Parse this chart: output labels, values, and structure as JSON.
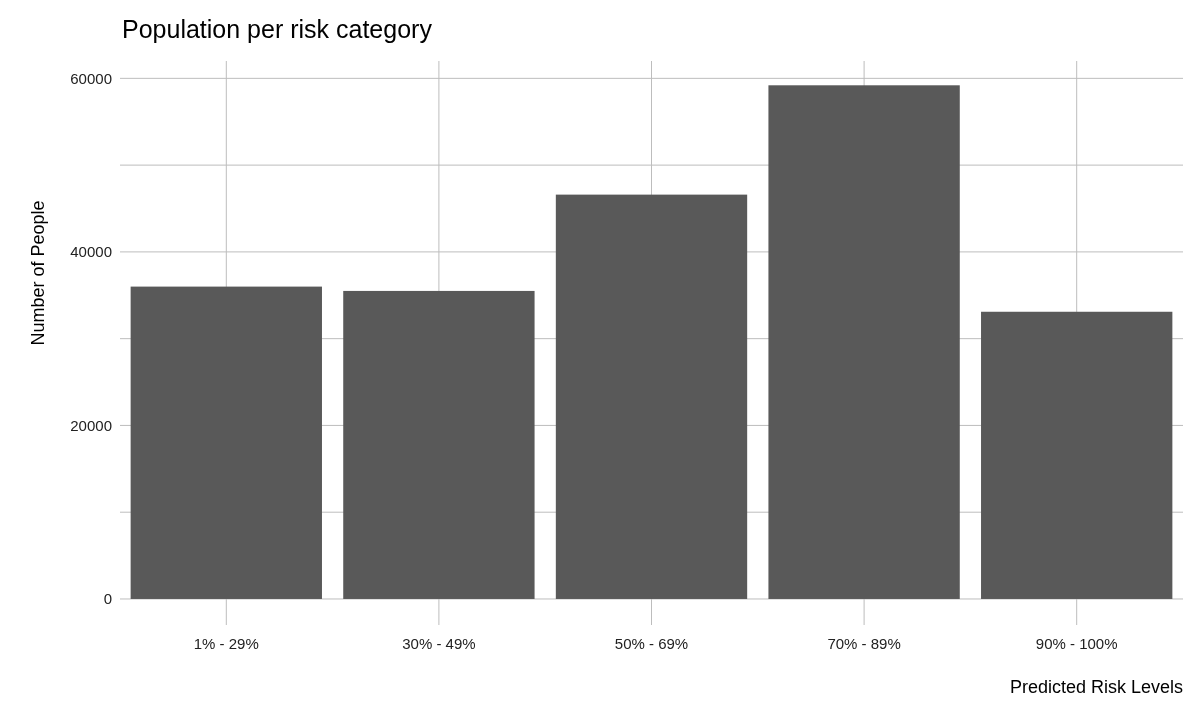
{
  "chart_data": {
    "type": "bar",
    "title": "Population per risk category",
    "xlabel": "Predicted Risk Levels",
    "ylabel": "Number of People",
    "categories": [
      "1% - 29%",
      "30% - 49%",
      "50% - 69%",
      "70% - 89%",
      "90% - 100%"
    ],
    "values": [
      36000,
      35500,
      46600,
      59200,
      33100
    ],
    "color": "#595959",
    "ylim": [
      -3000,
      62000
    ],
    "yticks": [
      0,
      {
        "value": 10000,
        "label": null
      },
      20000,
      {
        "value": 30000,
        "label": null
      },
      40000,
      {
        "value": 50000,
        "label": null
      },
      60000
    ],
    "grid": true
  }
}
